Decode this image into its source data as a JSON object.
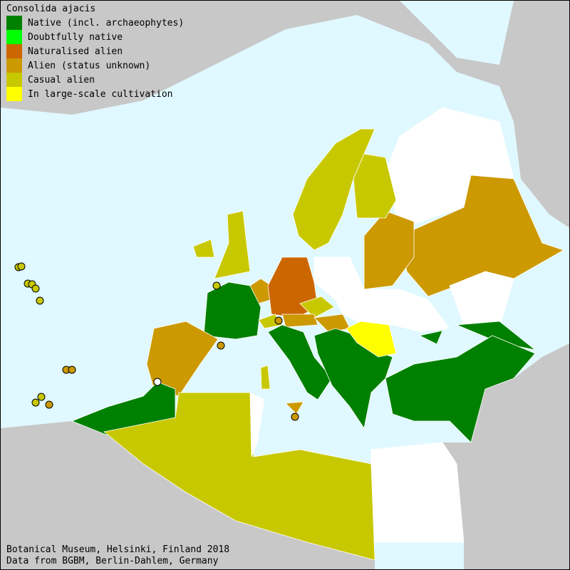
{
  "map": {
    "title": "Consolida ajacis",
    "colors": {
      "sea": "#e0f8ff",
      "outside": "#c8c8c8",
      "no_record": "#ffffff"
    },
    "legend": [
      {
        "label": "Native (incl. archaeophytes)",
        "color": "#008000"
      },
      {
        "label": "Doubtfully native",
        "color": "#00ff00"
      },
      {
        "label": "Naturalised alien",
        "color": "#cc6600"
      },
      {
        "label": "Alien (status unknown)",
        "color": "#cc9900"
      },
      {
        "label": "Casual alien",
        "color": "#c8c800"
      },
      {
        "label": "In large-scale cultivation",
        "color": "#ffff00"
      }
    ],
    "footer": {
      "line1": "Botanical Museum, Helsinki, Finland 2018",
      "line2": "Data from BGBM, Berlin-Dahlem, Germany"
    }
  }
}
